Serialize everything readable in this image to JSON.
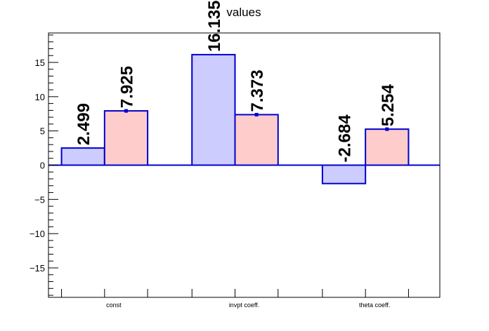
{
  "chart_data": {
    "type": "bar",
    "title": "values",
    "categories": [
      "const",
      "invpt coeff.",
      "theta coeff."
    ],
    "series": [
      {
        "values": [
          2.499,
          16.135,
          -2.684
        ],
        "labels": [
          "2.499",
          "16.135",
          "-2.684"
        ],
        "fill": "#ccccff",
        "stroke": "#0000cc"
      },
      {
        "values": [
          7.925,
          7.373,
          5.254
        ],
        "labels": [
          "7.925",
          "7.373",
          "5.254"
        ],
        "fill": "#ffcccc",
        "stroke": "#0000cc"
      }
    ],
    "ylim": [
      -19.3,
      19.3
    ],
    "yticks": [
      -15,
      -10,
      -5,
      0,
      5,
      10,
      15
    ],
    "ytick_labels": [
      "−15",
      "−10",
      "−5",
      "0",
      "5",
      "10",
      "15"
    ],
    "xlabel": "",
    "ylabel": "",
    "grid": false,
    "zero_line_color": "#0000cc"
  }
}
